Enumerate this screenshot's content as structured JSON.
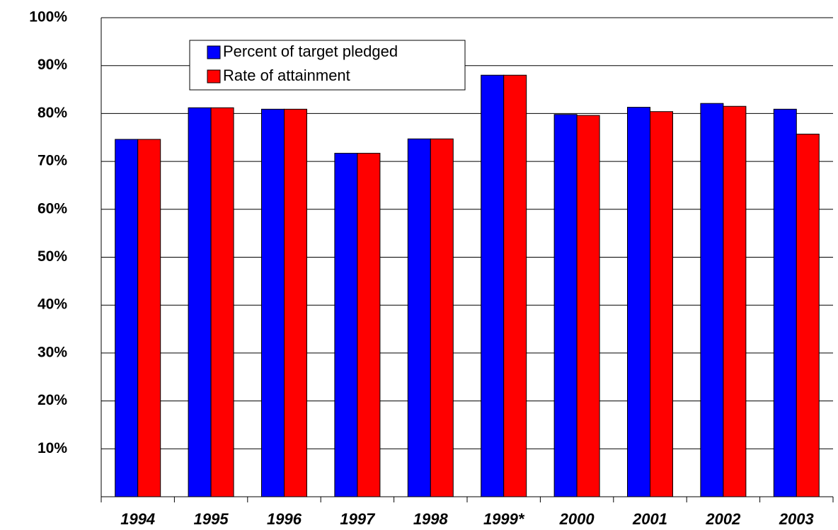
{
  "chart_data": {
    "type": "bar",
    "categories": [
      "1994",
      "1995",
      "1996",
      "1997",
      "1998",
      "1999*",
      "2000",
      "2001",
      "2002",
      "2003"
    ],
    "series": [
      {
        "name": "Percent of target pledged",
        "color": "#0000ff",
        "values": [
          74.6,
          81.2,
          80.9,
          71.7,
          74.7,
          88.0,
          79.8,
          81.3,
          82.1,
          80.9
        ]
      },
      {
        "name": "Rate of attainment",
        "color": "#ff0000",
        "values": [
          74.6,
          81.2,
          80.9,
          71.7,
          74.7,
          88.0,
          79.6,
          80.4,
          81.5,
          75.7
        ]
      }
    ],
    "ylim": [
      0,
      100
    ],
    "yticks": [
      {
        "value": 10,
        "label": "10%"
      },
      {
        "value": 20,
        "label": "20%"
      },
      {
        "value": 30,
        "label": "30%"
      },
      {
        "value": 40,
        "label": "40%"
      },
      {
        "value": 50,
        "label": "50%"
      },
      {
        "value": 60,
        "label": "60%"
      },
      {
        "value": 70,
        "label": "70%"
      },
      {
        "value": 80,
        "label": "80%"
      },
      {
        "value": 90,
        "label": "90%"
      },
      {
        "value": 100,
        "label": "100%"
      }
    ],
    "grid": true,
    "legend": "upper left"
  }
}
